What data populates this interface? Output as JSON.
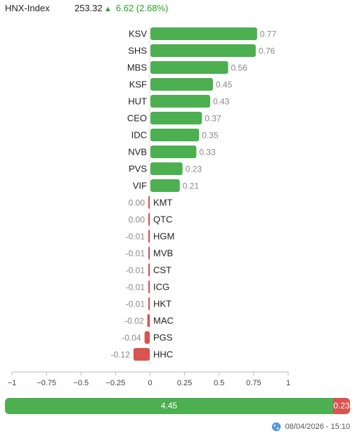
{
  "header": {
    "index_name": "HNX-Index",
    "index_value": "253.32",
    "change_text": "6.62 (2.68%)",
    "direction_icon": "triangle-up-icon"
  },
  "chart_data": {
    "type": "bar",
    "orientation": "horizontal",
    "categories": [
      "KSV",
      "SHS",
      "MBS",
      "KSF",
      "HUT",
      "CEO",
      "IDC",
      "NVB",
      "PVS",
      "VIF",
      "KMT",
      "QTC",
      "HGM",
      "MVB",
      "CST",
      "ICG",
      "HKT",
      "MAC",
      "PGS",
      "HHC"
    ],
    "values": [
      0.77,
      0.76,
      0.56,
      0.45,
      0.43,
      0.37,
      0.35,
      0.33,
      0.23,
      0.21,
      0.0,
      0.0,
      -0.01,
      -0.01,
      -0.01,
      -0.01,
      -0.01,
      -0.02,
      -0.04,
      -0.12
    ],
    "value_labels": [
      "0.77",
      "0.76",
      "0.56",
      "0.45",
      "0.43",
      "0.37",
      "0.35",
      "0.33",
      "0.23",
      "0.21",
      "0.00",
      "0.00",
      "-0.01",
      "-0.01",
      "-0.01",
      "-0.01",
      "-0.01",
      "-0.02",
      "-0.04",
      "-0.12"
    ],
    "xlim": [
      -1,
      1
    ],
    "ticks": [
      "−1",
      "−0.75",
      "−0.5",
      "−0.25",
      "0",
      "0.25",
      "0.5",
      "0.75",
      "1"
    ],
    "colors": {
      "positive": "#4caf50",
      "negative": "#d9534f"
    },
    "grid": false
  },
  "summary": {
    "positive_total": "4.45",
    "negative_total": "0.23",
    "positive_value": 4.45,
    "negative_value": 0.23
  },
  "footer": {
    "timestamp": "08/04/2026 - 15:10",
    "icon": "globe-icon"
  }
}
